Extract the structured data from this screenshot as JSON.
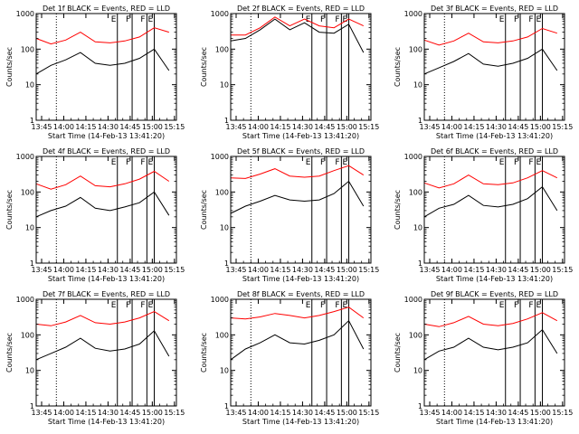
{
  "chart_data": [
    {
      "type": "line",
      "title": "Det 1f BLACK = Events, RED = LLD",
      "xlabel": "Start Time (14-Feb-13 13:41:20)",
      "ylabel": "Counts/sec",
      "xticks": [
        "13:45",
        "14:00",
        "14:15",
        "14:30",
        "14:45",
        "15:00",
        "15:15"
      ],
      "yticks": [
        "1",
        "10",
        "100",
        "1000"
      ],
      "ylim": [
        1,
        1000
      ],
      "log_y": true,
      "flags": [
        "E",
        "F",
        "F",
        "E"
      ],
      "series": [
        {
          "color": "#ff0000",
          "x": [
            0,
            10,
            20,
            30,
            40,
            50,
            60,
            70,
            80,
            90
          ],
          "y": [
            200,
            140,
            180,
            300,
            160,
            150,
            170,
            220,
            400,
            300
          ]
        },
        {
          "color": "#000000",
          "x": [
            0,
            10,
            20,
            30,
            40,
            50,
            60,
            70,
            80,
            90
          ],
          "y": [
            20,
            35,
            50,
            80,
            40,
            35,
            40,
            55,
            100,
            25
          ]
        }
      ]
    },
    {
      "type": "line",
      "title": "Det 2f BLACK = Events, RED = LLD",
      "xlabel": "Start Time (14-Feb-13 13:41:20)",
      "ylabel": "Counts/sec",
      "xticks": [
        "13:45",
        "14:00",
        "14:15",
        "14:30",
        "14:45",
        "15:00",
        "15:15"
      ],
      "yticks": [
        "1",
        "10",
        "100",
        "1000"
      ],
      "ylim": [
        1,
        1000
      ],
      "log_y": true,
      "flags": [
        "E",
        "F",
        "F",
        "E"
      ],
      "series": [
        {
          "color": "#ff0000",
          "x": [
            0,
            10,
            20,
            30,
            40,
            50,
            60,
            70,
            80,
            90
          ],
          "y": [
            250,
            250,
            400,
            800,
            450,
            700,
            450,
            400,
            700,
            450
          ]
        },
        {
          "color": "#000000",
          "x": [
            0,
            10,
            20,
            30,
            40,
            50,
            60,
            70,
            80,
            90
          ],
          "y": [
            170,
            200,
            350,
            700,
            350,
            550,
            300,
            280,
            500,
            80
          ]
        }
      ]
    },
    {
      "type": "line",
      "title": "Det 3f BLACK = Events, RED = LLD",
      "xlabel": "Start Time (14-Feb-13 13:41:20)",
      "ylabel": "Counts/sec",
      "xticks": [
        "13:45",
        "14:00",
        "14:15",
        "14:30",
        "14:45",
        "15:00",
        "15:15"
      ],
      "yticks": [
        "1",
        "10",
        "100",
        "1000"
      ],
      "ylim": [
        1,
        1000
      ],
      "log_y": true,
      "flags": [
        "E",
        "F",
        "F",
        "E"
      ],
      "series": [
        {
          "color": "#ff0000",
          "x": [
            0,
            10,
            20,
            30,
            40,
            50,
            60,
            70,
            80,
            90
          ],
          "y": [
            180,
            130,
            170,
            280,
            160,
            150,
            170,
            220,
            380,
            280
          ]
        },
        {
          "color": "#000000",
          "x": [
            0,
            10,
            20,
            30,
            40,
            50,
            60,
            70,
            80,
            90
          ],
          "y": [
            20,
            30,
            45,
            75,
            38,
            33,
            40,
            55,
            100,
            25
          ]
        }
      ]
    },
    {
      "type": "line",
      "title": "Det 4f BLACK = Events, RED = LLD",
      "xlabel": "Start Time (14-Feb-13 13:41:20)",
      "ylabel": "Counts/sec",
      "xticks": [
        "13:45",
        "14:00",
        "14:15",
        "14:30",
        "14:45",
        "15:00",
        "15:15"
      ],
      "yticks": [
        "1",
        "10",
        "100",
        "1000"
      ],
      "ylim": [
        1,
        1000
      ],
      "log_y": true,
      "flags": [
        "E",
        "F",
        "F",
        "E"
      ],
      "series": [
        {
          "color": "#ff0000",
          "x": [
            0,
            10,
            20,
            30,
            40,
            50,
            60,
            70,
            80,
            90
          ],
          "y": [
            170,
            120,
            160,
            280,
            150,
            140,
            170,
            230,
            380,
            200
          ]
        },
        {
          "color": "#000000",
          "x": [
            0,
            10,
            20,
            30,
            40,
            50,
            60,
            70,
            80,
            90
          ],
          "y": [
            20,
            30,
            40,
            70,
            35,
            30,
            38,
            50,
            100,
            22
          ]
        }
      ]
    },
    {
      "type": "line",
      "title": "Det 5f BLACK = Events, RED = LLD",
      "xlabel": "Start Time (14-Feb-13 13:41:20)",
      "ylabel": "Counts/sec",
      "xticks": [
        "13:45",
        "14:00",
        "14:15",
        "14:30",
        "14:45",
        "15:00",
        "15:15"
      ],
      "yticks": [
        "1",
        "10",
        "100",
        "1000"
      ],
      "ylim": [
        1,
        1000
      ],
      "log_y": true,
      "flags": [
        "E",
        "F",
        "F",
        "E"
      ],
      "series": [
        {
          "color": "#ff0000",
          "x": [
            0,
            10,
            20,
            30,
            40,
            50,
            60,
            70,
            80,
            90
          ],
          "y": [
            250,
            240,
            320,
            450,
            280,
            260,
            280,
            400,
            550,
            300
          ]
        },
        {
          "color": "#000000",
          "x": [
            0,
            10,
            20,
            30,
            40,
            50,
            60,
            70,
            80,
            90
          ],
          "y": [
            25,
            40,
            55,
            80,
            60,
            55,
            60,
            90,
            200,
            40
          ]
        }
      ]
    },
    {
      "type": "line",
      "title": "Det 6f BLACK = Events, RED = LLD",
      "xlabel": "Start Time (14-Feb-13 13:41:20)",
      "ylabel": "Counts/sec",
      "xticks": [
        "13:45",
        "14:00",
        "14:15",
        "14:30",
        "14:45",
        "15:00",
        "15:15"
      ],
      "yticks": [
        "1",
        "10",
        "100",
        "1000"
      ],
      "ylim": [
        1,
        1000
      ],
      "log_y": true,
      "flags": [
        "E",
        "F",
        "F",
        "E"
      ],
      "series": [
        {
          "color": "#ff0000",
          "x": [
            0,
            10,
            20,
            30,
            40,
            50,
            60,
            70,
            80,
            90
          ],
          "y": [
            180,
            130,
            170,
            300,
            170,
            160,
            180,
            250,
            400,
            250
          ]
        },
        {
          "color": "#000000",
          "x": [
            0,
            10,
            20,
            30,
            40,
            50,
            60,
            70,
            80,
            90
          ],
          "y": [
            20,
            35,
            45,
            80,
            42,
            38,
            45,
            65,
            140,
            30
          ]
        }
      ]
    },
    {
      "type": "line",
      "title": "Det 7f BLACK = Events, RED = LLD",
      "xlabel": "Start Time (14-Feb-13 13:41:20)",
      "ylabel": "Counts/sec",
      "xticks": [
        "13:45",
        "14:00",
        "14:15",
        "14:30",
        "14:45",
        "15:00",
        "15:15"
      ],
      "yticks": [
        "1",
        "10",
        "100",
        "1000"
      ],
      "ylim": [
        1,
        1000
      ],
      "log_y": true,
      "flags": [
        "E",
        "F",
        "F",
        "E"
      ],
      "series": [
        {
          "color": "#ff0000",
          "x": [
            0,
            10,
            20,
            30,
            40,
            50,
            60,
            70,
            80,
            90
          ],
          "y": [
            200,
            180,
            230,
            350,
            220,
            200,
            230,
            300,
            450,
            250
          ]
        },
        {
          "color": "#000000",
          "x": [
            0,
            10,
            20,
            30,
            40,
            50,
            60,
            70,
            80,
            90
          ],
          "y": [
            20,
            30,
            45,
            80,
            42,
            35,
            40,
            55,
            130,
            25
          ]
        }
      ]
    },
    {
      "type": "line",
      "title": "Det 8f BLACK = Events, RED = LLD",
      "xlabel": "Start Time (14-Feb-13 13:41:20)",
      "ylabel": "Counts/sec",
      "xticks": [
        "13:45",
        "14:00",
        "14:15",
        "14:30",
        "14:45",
        "15:00",
        "15:15"
      ],
      "yticks": [
        "1",
        "10",
        "100",
        "1000"
      ],
      "ylim": [
        1,
        1000
      ],
      "log_y": true,
      "flags": [
        "E",
        "F",
        "F",
        "E"
      ],
      "series": [
        {
          "color": "#ff0000",
          "x": [
            0,
            10,
            20,
            30,
            40,
            50,
            60,
            70,
            80,
            90
          ],
          "y": [
            300,
            280,
            320,
            400,
            350,
            300,
            350,
            450,
            600,
            300
          ]
        },
        {
          "color": "#000000",
          "x": [
            0,
            10,
            20,
            30,
            40,
            50,
            60,
            70,
            80,
            90
          ],
          "y": [
            20,
            40,
            60,
            100,
            60,
            55,
            70,
            100,
            250,
            40
          ]
        }
      ]
    },
    {
      "type": "line",
      "title": "Det 9f BLACK = Events, RED = LLD",
      "xlabel": "Start Time (14-Feb-13 13:41:20)",
      "ylabel": "Counts/sec",
      "xticks": [
        "13:45",
        "14:00",
        "14:15",
        "14:30",
        "14:45",
        "15:00",
        "15:15"
      ],
      "yticks": [
        "1",
        "10",
        "100",
        "1000"
      ],
      "ylim": [
        1,
        1000
      ],
      "log_y": true,
      "flags": [
        "E",
        "F",
        "F",
        "E"
      ],
      "series": [
        {
          "color": "#ff0000",
          "x": [
            0,
            10,
            20,
            30,
            40,
            50,
            60,
            70,
            80,
            90
          ],
          "y": [
            200,
            170,
            220,
            330,
            200,
            180,
            210,
            280,
            420,
            250
          ]
        },
        {
          "color": "#000000",
          "x": [
            0,
            10,
            20,
            30,
            40,
            50,
            60,
            70,
            80,
            90
          ],
          "y": [
            20,
            35,
            45,
            80,
            45,
            38,
            45,
            60,
            140,
            30
          ]
        }
      ]
    }
  ]
}
